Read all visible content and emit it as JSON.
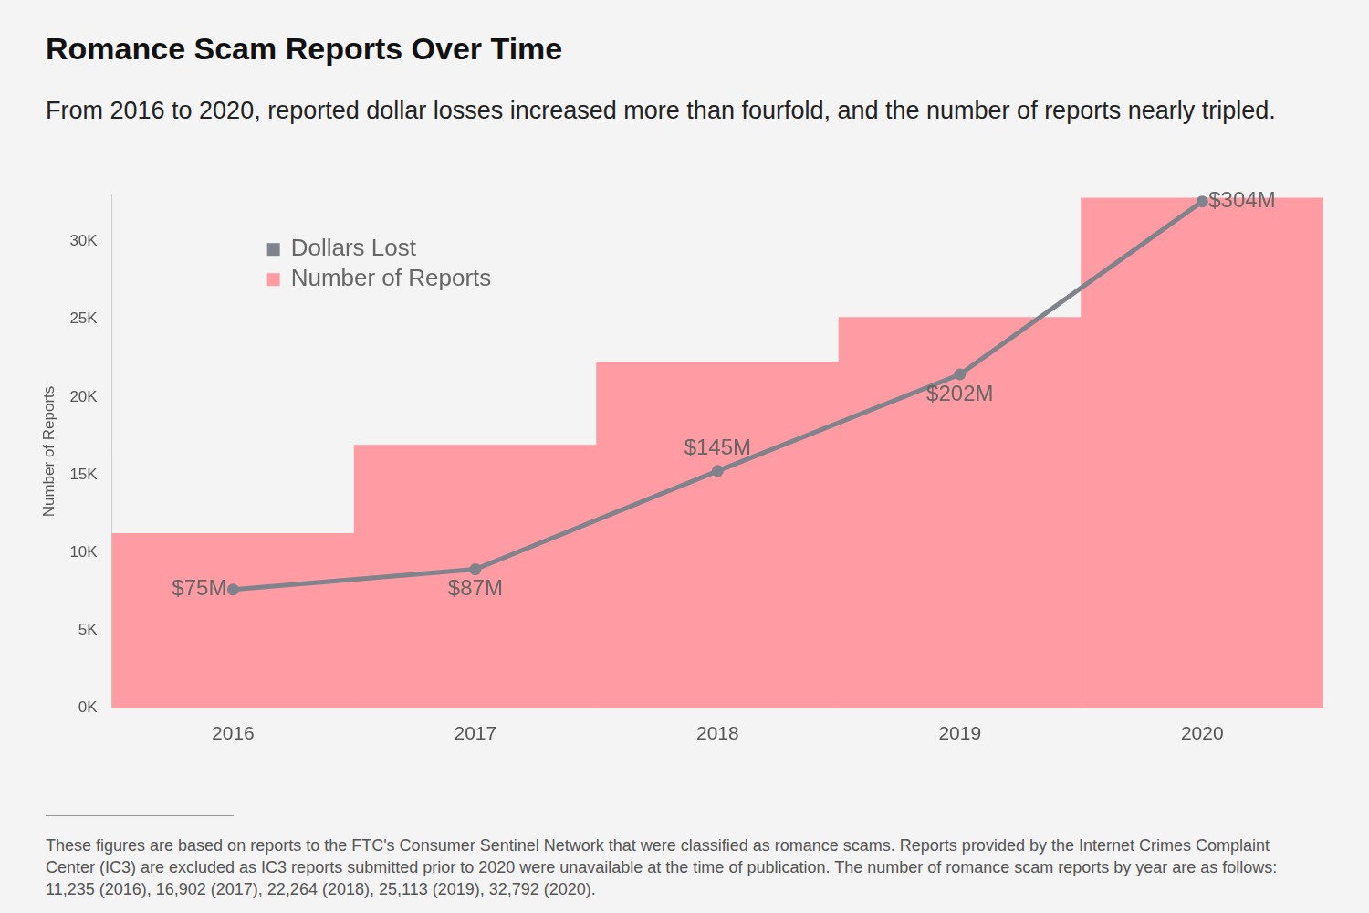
{
  "chart_data": {
    "type": "bar",
    "title": "Romance Scam Reports Over Time",
    "subtitle": "From 2016 to 2020, reported dollar losses increased more than fourfold, and the number of reports nearly tripled.",
    "note": "These figures are based on reports to the FTC's Consumer Sentinel Network that were classified as romance scams. Reports provided by the Internet Crimes Complaint Center (IC3) are excluded as IC3 reports submitted prior to 2020 were unavailable at the time of publication. The number of romance scam reports by year are as follows: 11,235 (2016), 16,902 (2017), 22,264 (2018), 25,113 (2019), 32,792 (2020).",
    "y_label": "Number of Reports",
    "categories": [
      "2016",
      "2017",
      "2018",
      "2019",
      "2020"
    ],
    "series": [
      {
        "name": "Dollars Lost",
        "type": "line",
        "axis": "y2",
        "color": "#7f838c",
        "marker": "circle",
        "values": [
          75,
          87,
          145,
          202,
          304
        ],
        "value_labels": [
          "$75M",
          "$87M",
          "$145M",
          "$202M",
          "$304M"
        ],
        "data_labels": true
      },
      {
        "name": "Number of Reports",
        "type": "bar",
        "color": "#ff9ba3",
        "values": [
          11235,
          16902,
          22264,
          25113,
          32792
        ]
      }
    ],
    "ylim": [
      0,
      33000
    ],
    "yticks": [
      {
        "value": 0,
        "label": "0K"
      },
      {
        "value": 5000,
        "label": "5K"
      },
      {
        "value": 10000,
        "label": "10K"
      },
      {
        "value": 15000,
        "label": "15K"
      },
      {
        "value": 20000,
        "label": "20K"
      },
      {
        "value": 25000,
        "label": "25K"
      },
      {
        "value": 30000,
        "label": "30K"
      }
    ],
    "y2lim": [
      5,
      308
    ],
    "legend": "top-left",
    "grid": false
  }
}
